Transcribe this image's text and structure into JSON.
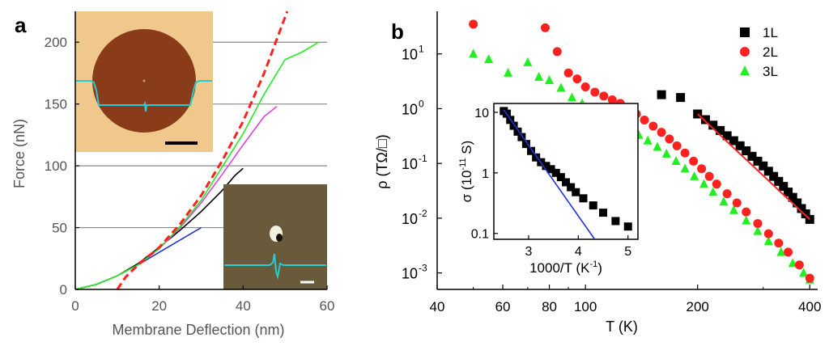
{
  "colors": {
    "black": "#000000",
    "red": "#ff2020",
    "green": "#22ee22",
    "blue": "#2233dd",
    "magenta": "#e040e0",
    "cyan": "#20d0d0",
    "gray": "#8a8a8a",
    "afm_bg": "#f0c88c",
    "afm_disk": "#8a3c1a",
    "afm_dark": "#6a5a3c"
  },
  "chart_data": [
    {
      "panel_label": "a",
      "type": "line",
      "xlabel": "Membrane Deflection (nm)",
      "ylabel": "Force (nN)",
      "xlim": [
        0,
        60
      ],
      "ylim": [
        0,
        225
      ],
      "xticks": [
        "0",
        "20",
        "40",
        "60"
      ],
      "yticks": [
        "0",
        "50",
        "100",
        "150",
        "200"
      ],
      "reference_lines": [
        50,
        100,
        150,
        200
      ],
      "series": [
        {
          "color": "#2233dd",
          "style": "solid",
          "x": [
            0,
            5,
            10,
            15,
            20,
            25,
            30
          ],
          "y": [
            0,
            4,
            11,
            20,
            30,
            40,
            50
          ]
        },
        {
          "color": "#000000",
          "style": "solid",
          "x": [
            0,
            5,
            10,
            15,
            20,
            25,
            30,
            35,
            38,
            40
          ],
          "y": [
            0,
            4,
            11,
            21,
            34,
            48,
            63,
            80,
            92,
            98
          ]
        },
        {
          "color": "#e040e0",
          "style": "solid",
          "x": [
            0,
            5,
            10,
            15,
            20,
            25,
            30,
            35,
            40,
            45,
            48
          ],
          "y": [
            0,
            4,
            11,
            20,
            33,
            50,
            70,
            93,
            117,
            140,
            148
          ]
        },
        {
          "color": "#22ee22",
          "style": "solid",
          "x": [
            0,
            5,
            10,
            15,
            20,
            25,
            30,
            35,
            40,
            45,
            50,
            54,
            58
          ],
          "y": [
            0,
            4,
            11,
            20,
            33,
            51,
            72,
            99,
            126,
            158,
            186,
            192,
            200
          ]
        },
        {
          "color": "#ff2020",
          "style": "dashed",
          "x": [
            10,
            12,
            15,
            20,
            25,
            30,
            35,
            40,
            45,
            50.5
          ],
          "y": [
            0,
            10,
            20,
            34,
            53,
            76,
            104,
            136,
            175,
            225
          ]
        }
      ],
      "insets": [
        {
          "kind": "afm-image-membrane",
          "scale_bar": true
        },
        {
          "kind": "afm-image-indent",
          "scale_bar": true
        }
      ]
    },
    {
      "panel_label": "b",
      "type": "scatter",
      "xlabel": "T (K)",
      "ylabel": "ρ (TΩ/□)",
      "xscale": "log",
      "yscale": "log",
      "xlim": [
        40,
        420
      ],
      "ylim": [
        0.0005,
        60
      ],
      "xticks": [
        "40",
        "60",
        "80",
        "100",
        "200",
        "400"
      ],
      "yticks": [
        "10",
        "10",
        "10",
        "10",
        "10"
      ],
      "ytick_exponents": [
        "1",
        "0",
        "-1",
        "-2",
        "-3"
      ],
      "legend": {
        "placement": "top-right",
        "entries": [
          "1L",
          "2L",
          "3L"
        ]
      },
      "series": [
        {
          "name": "1L",
          "marker": "square",
          "color": "#000000",
          "x": [
            160,
            180,
            200,
            210,
            220,
            230,
            240,
            250,
            260,
            270,
            280,
            290,
            300,
            310,
            320,
            330,
            340,
            350,
            360,
            370,
            380,
            390,
            400
          ],
          "y": [
            1.8,
            1.6,
            0.8,
            0.63,
            0.5,
            0.4,
            0.32,
            0.26,
            0.21,
            0.17,
            0.135,
            0.11,
            0.09,
            0.072,
            0.058,
            0.047,
            0.038,
            0.03,
            0.024,
            0.019,
            0.015,
            0.012,
            0.0095
          ],
          "fit": {
            "color": "#ff2020",
            "x": [
              200,
              400
            ],
            "y": [
              0.8,
              0.0095
            ]
          }
        },
        {
          "name": "2L",
          "marker": "circle",
          "color": "#ff2020",
          "x": [
            50,
            78,
            84,
            90,
            95,
            100,
            106,
            112,
            118,
            124,
            130,
            137,
            144,
            152,
            160,
            168,
            176,
            185,
            195,
            205,
            215,
            225,
            240,
            255,
            270,
            290,
            310,
            330,
            350,
            375,
            400
          ],
          "y": [
            35,
            30,
            11,
            4.5,
            3.5,
            2.5,
            2.0,
            1.7,
            1.45,
            1.25,
            1.0,
            0.8,
            0.62,
            0.48,
            0.37,
            0.28,
            0.21,
            0.155,
            0.11,
            0.08,
            0.058,
            0.042,
            0.028,
            0.019,
            0.013,
            0.008,
            0.0052,
            0.0035,
            0.0024,
            0.0014,
            0.0008
          ]
        },
        {
          "name": "3L",
          "marker": "triangle",
          "color": "#22ee22",
          "x": [
            50,
            55,
            62,
            70,
            75,
            80,
            86,
            92,
            98,
            104,
            110,
            117,
            124,
            131,
            139,
            147,
            156,
            165,
            175,
            185,
            196,
            208,
            220,
            235,
            250,
            270,
            290,
            310,
            335,
            360,
            385,
            400
          ],
          "y": [
            10,
            8,
            4.5,
            7,
            3.8,
            3.3,
            2.4,
            1.6,
            1.25,
            1.0,
            0.82,
            0.66,
            0.53,
            0.42,
            0.33,
            0.26,
            0.2,
            0.15,
            0.11,
            0.08,
            0.058,
            0.042,
            0.03,
            0.02,
            0.014,
            0.009,
            0.0058,
            0.0038,
            0.0024,
            0.0015,
            0.001,
            0.00075
          ]
        }
      ]
    },
    {
      "panel_label": "b-inset",
      "type": "scatter",
      "xlabel": "1000/T (K",
      "xlabel_sup": "-1",
      "xlabel_close": ")",
      "ylabel": "σ (10",
      "ylabel_sup": "-11",
      "ylabel_close": " S)",
      "yscale": "log",
      "xlim": [
        2.3,
        5.2
      ],
      "ylim": [
        0.08,
        14
      ],
      "xticks": [
        "3",
        "4",
        "5"
      ],
      "yticks": [
        "0.1",
        "1",
        "10"
      ],
      "series": [
        {
          "marker": "square",
          "color": "#000000",
          "x": [
            2.5,
            2.56,
            2.63,
            2.7,
            2.78,
            2.86,
            2.95,
            3.05,
            3.15,
            3.25,
            3.35,
            3.45,
            3.55,
            3.65,
            3.75,
            3.85,
            3.95,
            4.1,
            4.3,
            4.5,
            4.75,
            5.0
          ],
          "y": [
            10.5,
            9.5,
            7.5,
            6.0,
            4.8,
            3.9,
            3.0,
            2.3,
            1.8,
            1.5,
            1.3,
            1.15,
            1.0,
            0.85,
            0.7,
            0.58,
            0.48,
            0.38,
            0.29,
            0.22,
            0.16,
            0.13
          ],
          "fit": {
            "color": "#2233dd",
            "x": [
              2.5,
              4.33
            ],
            "y": [
              11,
              0.08
            ]
          }
        }
      ]
    }
  ]
}
